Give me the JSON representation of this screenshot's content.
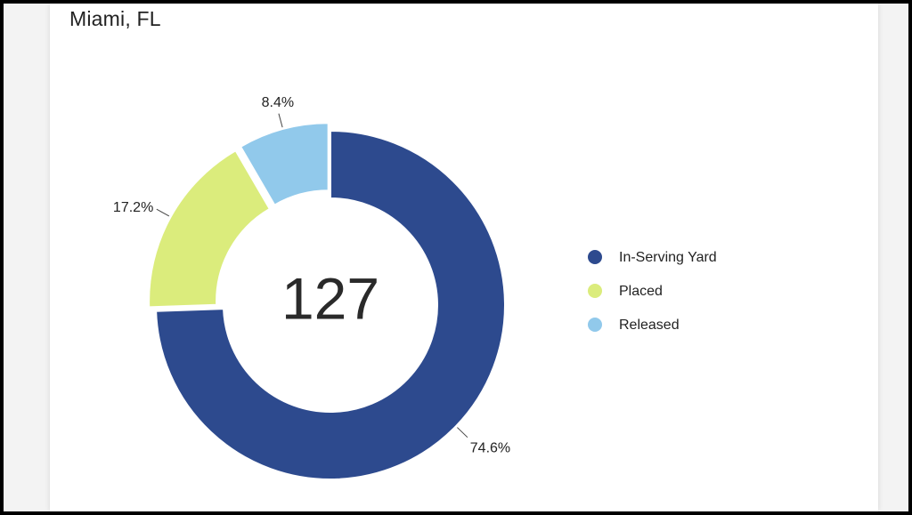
{
  "card": {
    "title": "Miami, FL"
  },
  "colors": {
    "in_serving_yard": "#2d4a8e",
    "placed": "#dbec7c",
    "released": "#91c9eb"
  },
  "chart_data": {
    "type": "pie",
    "variant": "donut",
    "center_total": "127",
    "legend_position": "right",
    "slices": [
      {
        "name": "In-Serving Yard",
        "percent": 74.6,
        "label": "74.6%",
        "color": "#2d4a8e"
      },
      {
        "name": "Placed",
        "percent": 17.2,
        "label": "17.2%",
        "color": "#dbec7c"
      },
      {
        "name": "Released",
        "percent": 8.4,
        "label": "8.4%",
        "color": "#91c9eb"
      }
    ]
  }
}
